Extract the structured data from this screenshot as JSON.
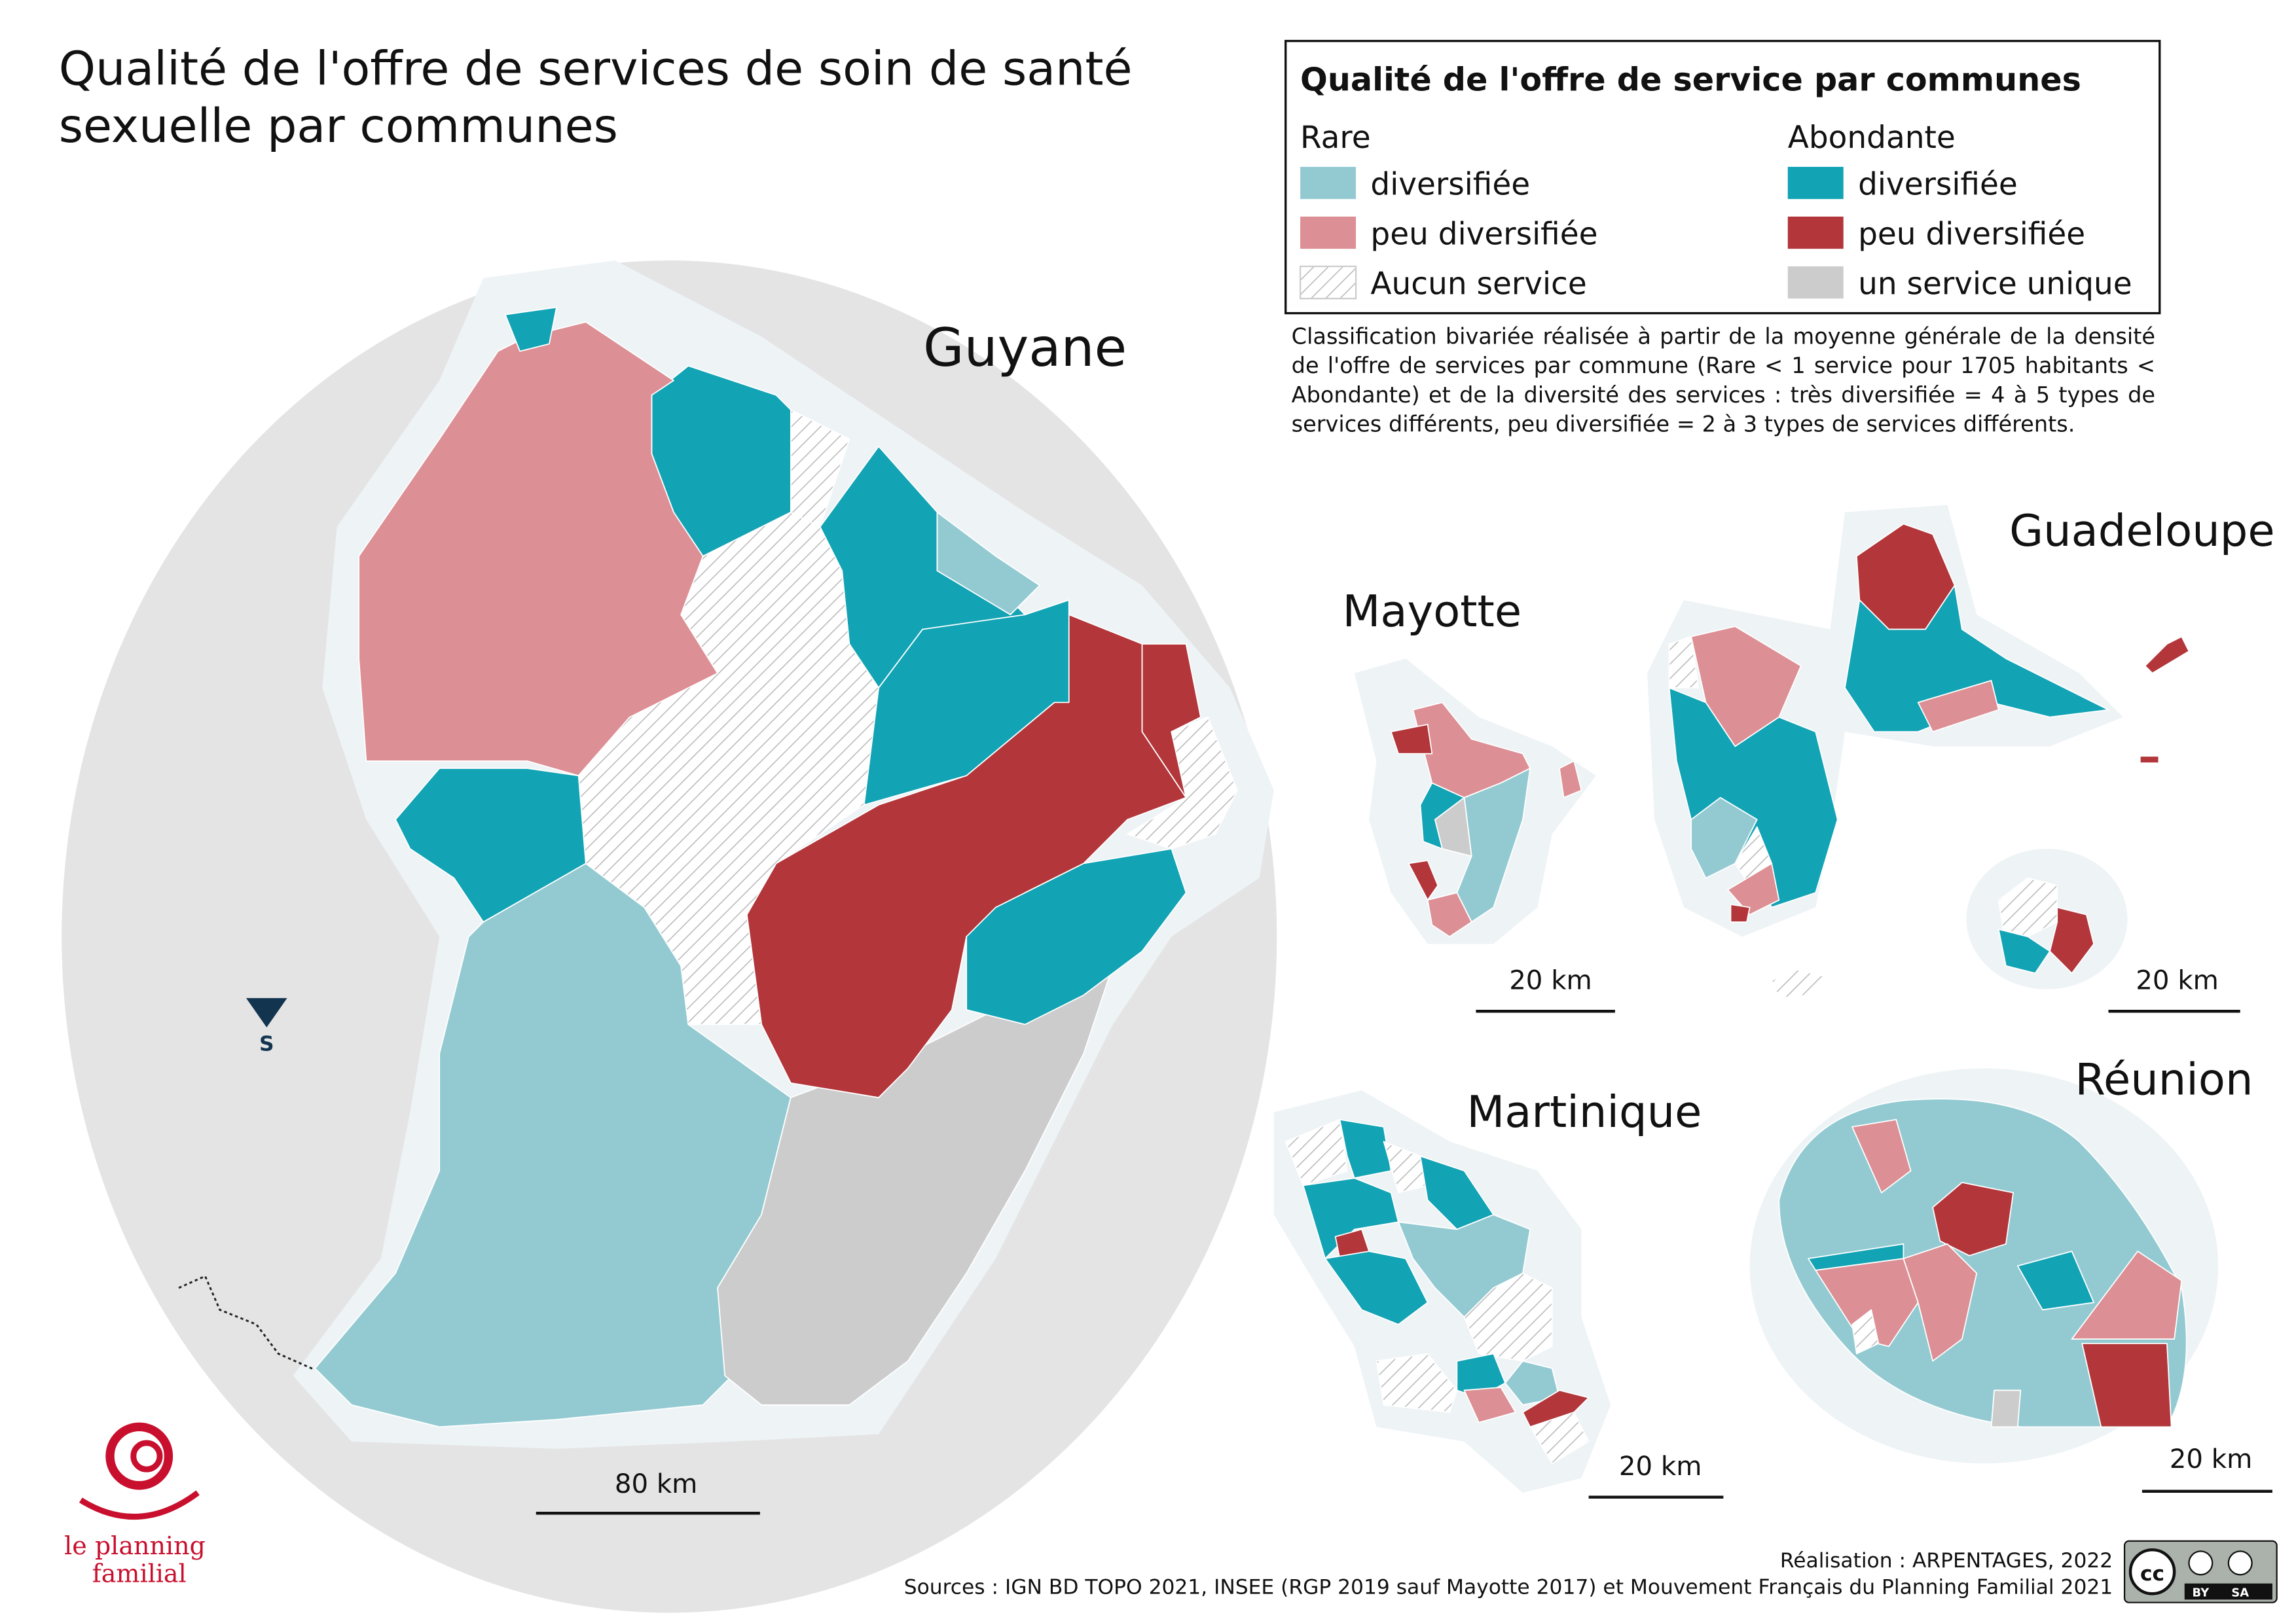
{
  "title": [
    "Qualité de l'offre de services de soin de santé",
    "sexuelle par communes"
  ],
  "legend": {
    "title": "Qualité de l'offre de service par communes",
    "groups": [
      {
        "heading": "Rare",
        "items": [
          "diversifiée",
          "peu diversifiée",
          "Aucun service"
        ]
      },
      {
        "heading": "Abondante",
        "items": [
          "diversifiée",
          "peu diversifiée",
          "un service unique"
        ]
      }
    ]
  },
  "note": "Classification bivariée réalisée à partir de la moyenne générale de la densité de l'offre de services par commune (Rare < 1 service pour 1705 habitants < Abondante) et de la diversité des services : très diversifiée = 4 à 5 types de services différents, peu diversifiée = 2 à 3 types de services différents.",
  "regions": {
    "guyane": "Guyane",
    "mayotte": "Mayotte",
    "guadeloupe": "Guadeloupe",
    "martinique": "Martinique",
    "reunion": "Réunion"
  },
  "scale_bars": {
    "guyane": "80 km",
    "mayotte": "20 km",
    "guadeloupe": "20 km",
    "martinique": "20 km",
    "reunion": "20 km"
  },
  "orientation": "S",
  "logo": [
    "le planning",
    "familial"
  ],
  "credits": "Réalisation :  ARPENTAGES, 2022",
  "sources": "Sources : IGN BD TOPO 2021, INSEE (RGP 2019 sauf Mayotte 2017) et Mouvement Français du Planning Familial 2021",
  "license": [
    "cc",
    "BY",
    "SA"
  ]
}
